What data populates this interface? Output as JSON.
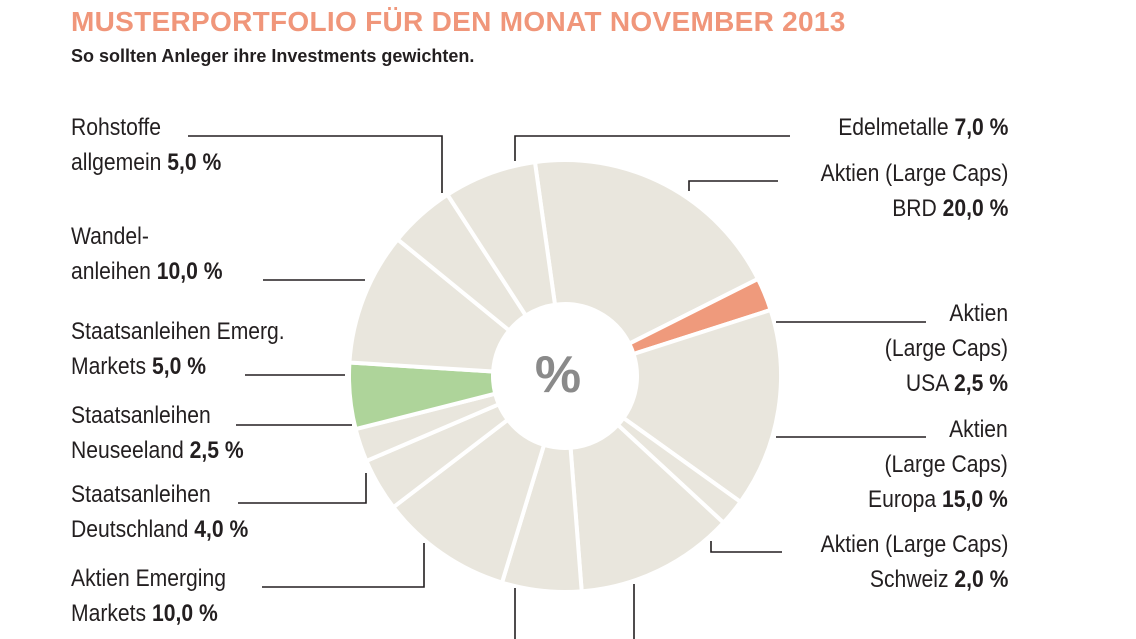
{
  "title": "MUSTERPORTFOLIO FÜR DEN MONAT NOVEMBER 2013",
  "subtitle": "So sollten Anleger ihre Investments gewichten.",
  "center_label": "%",
  "colors": {
    "title": "#f0967a",
    "default_slice": "#e9e6dd",
    "highlight_orange": "#ef9a7c",
    "highlight_green": "#aed49a",
    "leader": "#231f20"
  },
  "labels": {
    "rohstoffe": {
      "line1": "Rohstoffe",
      "line2": "allgemein",
      "value": "5,0 %"
    },
    "wandel": {
      "line1": "Wandel-",
      "line2": "anleihen",
      "value": "10,0 %"
    },
    "emerg": {
      "line1": "Staatsanleihen Emerg.",
      "line2": "Markets",
      "value": "5,0 %"
    },
    "neuseeland": {
      "line1": "Staatsanleihen",
      "line2": "Neuseeland",
      "value": "2,5 %"
    },
    "deutschland": {
      "line1": "Staatsanleihen",
      "line2": "Deutschland",
      "value": "4,0 %"
    },
    "em_aktien": {
      "line1": "Aktien Emerging",
      "line2": "Markets",
      "value": "10,0 %"
    },
    "edelmetalle": {
      "line1": "Edelmetalle",
      "value": "7,0 %"
    },
    "brd": {
      "line1": "Aktien (Large Caps)",
      "line2": "BRD",
      "value": "20,0 %"
    },
    "usa": {
      "line1": "Aktien",
      "line2": "(Large Caps)",
      "line3": "USA",
      "value": "2,5 %"
    },
    "europa": {
      "line1": "Aktien",
      "line2": "(Large Caps)",
      "line3": "Europa",
      "value": "15,0 %"
    },
    "schweiz": {
      "line1": "Aktien (Large Caps)",
      "line2": "Schweiz",
      "value": "2,0 %"
    }
  },
  "chart_data": {
    "type": "pie",
    "variant": "donut",
    "title": "MUSTERPORTFOLIO FÜR DEN MONAT NOVEMBER 2013",
    "subtitle": "So sollten Anleger ihre Investments gewichten.",
    "unit": "%",
    "slices": [
      {
        "label": "Aktien (Large Caps) BRD",
        "value": 20.0,
        "highlight": "none"
      },
      {
        "label": "Aktien (Large Caps) USA",
        "value": 2.5,
        "highlight": "orange"
      },
      {
        "label": "Aktien (Large Caps) Europa",
        "value": 15.0,
        "highlight": "none"
      },
      {
        "label": "Aktien (Large Caps) Schweiz",
        "value": 2.0,
        "highlight": "none"
      },
      {
        "label": "",
        "value": 12.0,
        "highlight": "none"
      },
      {
        "label": "",
        "value": 6.0,
        "highlight": "none"
      },
      {
        "label": "Aktien Emerging Markets",
        "value": 10.0,
        "highlight": "none"
      },
      {
        "label": "Staatsanleihen Deutschland",
        "value": 4.0,
        "highlight": "none"
      },
      {
        "label": "Staatsanleihen Neuseeland",
        "value": 2.5,
        "highlight": "none"
      },
      {
        "label": "Staatsanleihen Emerg. Markets",
        "value": 5.0,
        "highlight": "green"
      },
      {
        "label": "Wandelanleihen",
        "value": 10.0,
        "highlight": "none"
      },
      {
        "label": "Rohstoffe allgemein",
        "value": 5.0,
        "highlight": "none"
      },
      {
        "label": "Edelmetalle",
        "value": 7.0,
        "highlight": "none"
      }
    ]
  }
}
